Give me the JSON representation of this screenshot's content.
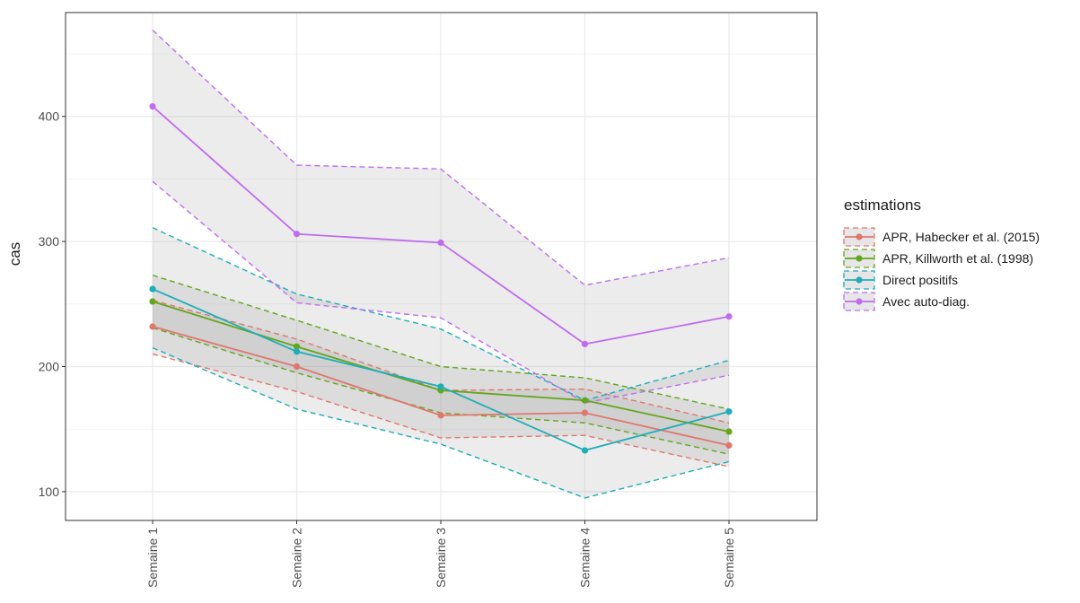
{
  "chart_data": {
    "type": "line",
    "title": "",
    "xlabel": "",
    "ylabel": "cas",
    "categories": [
      "Semaine 1",
      "Semaine 2",
      "Semaine 3",
      "Semaine 4",
      "Semaine 5"
    ],
    "ylim": [
      77,
      483
    ],
    "yticks": [
      100,
      200,
      300,
      400
    ],
    "grid": true,
    "legend": {
      "title": "estimations",
      "position": "right"
    },
    "series": [
      {
        "name": "APR, Habecker et al. (2015)",
        "color": "#e0776e",
        "values": [
          232,
          200,
          161,
          163,
          137
        ],
        "lower": [
          210,
          180,
          143,
          145,
          120
        ],
        "upper": [
          253,
          222,
          181,
          182,
          155
        ]
      },
      {
        "name": "APR, Killworth et al. (1998)",
        "color": "#63a51c",
        "values": [
          252,
          216,
          181,
          173,
          148
        ],
        "lower": [
          231,
          195,
          163,
          155,
          130
        ],
        "upper": [
          273,
          237,
          200,
          191,
          166
        ]
      },
      {
        "name": "Direct positifs",
        "color": "#1daeb8",
        "values": [
          262,
          212,
          184,
          133,
          164
        ],
        "lower": [
          215,
          166,
          138,
          95,
          124
        ],
        "upper": [
          311,
          258,
          230,
          173,
          205
        ]
      },
      {
        "name": "Avec auto-diag.",
        "color": "#bf6cf0",
        "values": [
          408,
          306,
          299,
          218,
          240
        ],
        "lower": [
          348,
          251,
          239,
          171,
          193
        ],
        "upper": [
          469,
          361,
          358,
          265,
          287
        ]
      }
    ]
  }
}
